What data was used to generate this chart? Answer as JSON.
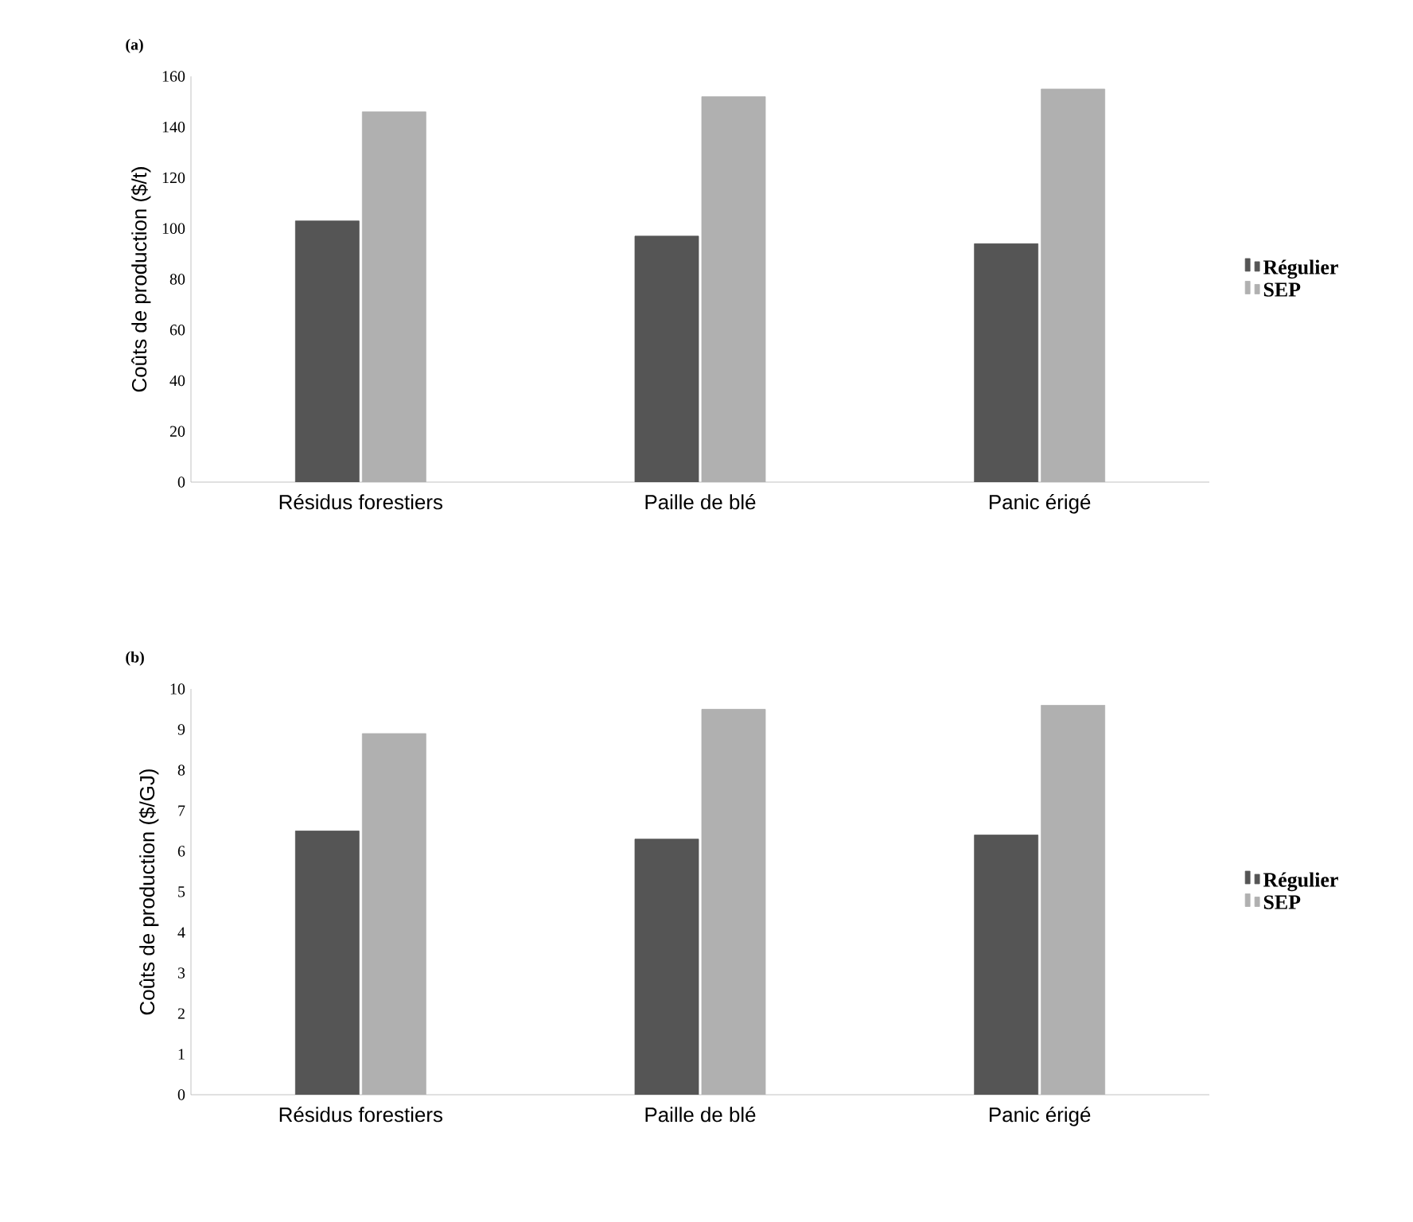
{
  "chart_data": [
    {
      "type": "bar",
      "title": "(a)",
      "ylabel": "Coûts de production ($/t)",
      "categories": [
        "Résidus forestiers",
        "Paille de blé",
        "Panic érigé"
      ],
      "series": [
        {
          "name": "Régulier",
          "color": "#555555",
          "values": [
            103,
            97,
            94
          ]
        },
        {
          "name": "SEP",
          "color": "#b0b0b0",
          "values": [
            146,
            152,
            155
          ]
        }
      ],
      "ylim": [
        0,
        160
      ],
      "yticks": [
        0,
        20,
        40,
        60,
        80,
        100,
        120,
        140,
        160
      ],
      "legend": "right",
      "grid": false
    },
    {
      "type": "bar",
      "title": "(b)",
      "ylabel": "Coûts de production ($/GJ)",
      "categories": [
        "Résidus forestiers",
        "Paille de blé",
        "Panic érigé"
      ],
      "series": [
        {
          "name": "Régulier",
          "color": "#555555",
          "values": [
            6.5,
            6.3,
            6.4
          ]
        },
        {
          "name": "SEP",
          "color": "#b0b0b0",
          "values": [
            8.9,
            9.5,
            9.6
          ]
        }
      ],
      "ylim": [
        0,
        10
      ],
      "yticks": [
        0,
        1,
        2,
        3,
        4,
        5,
        6,
        7,
        8,
        9,
        10
      ],
      "legend": "right",
      "grid": false
    }
  ]
}
